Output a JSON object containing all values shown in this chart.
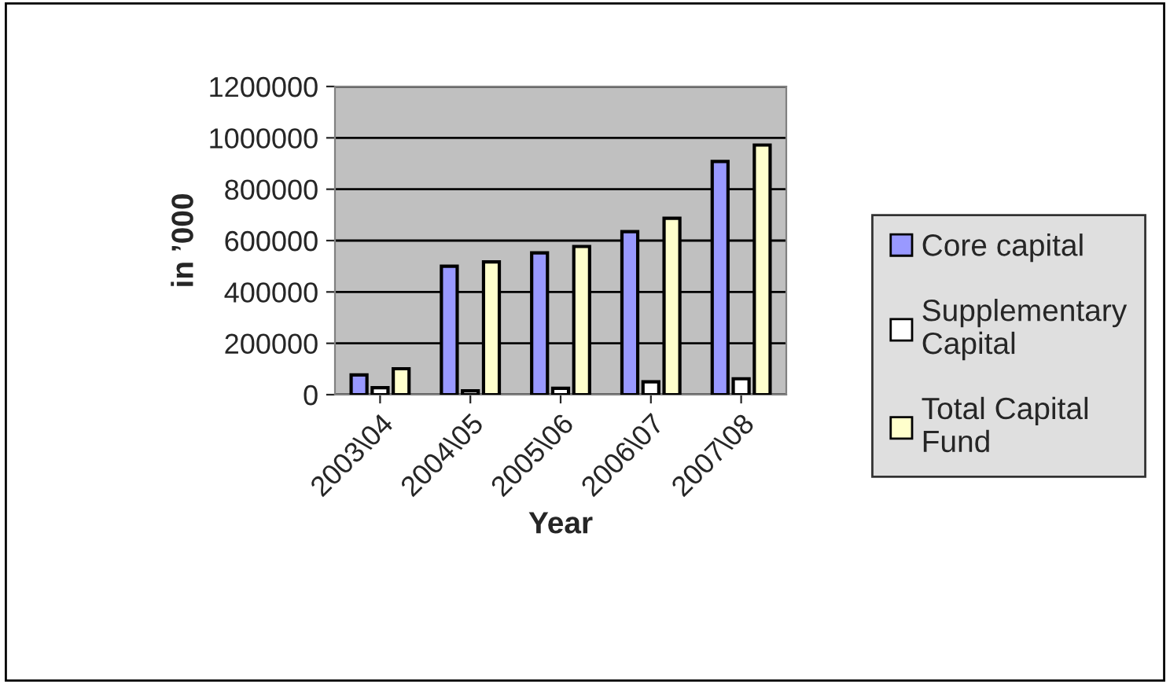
{
  "chart_data": {
    "type": "bar",
    "xlabel": "Year",
    "ylabel": "in ’000",
    "categories": [
      "2003\\04",
      "2004\\05",
      "2005\\06",
      "2006\\07",
      "2007\\08"
    ],
    "series": [
      {
        "name": "Core capital",
        "color": "#9999ff",
        "values": [
          77000,
          500000,
          552000,
          635000,
          908000
        ]
      },
      {
        "name": "Supplementary Capital",
        "color": "#ffffff",
        "values": [
          27000,
          15000,
          25000,
          50000,
          62000
        ]
      },
      {
        "name": "Total Capital Fund",
        "color": "#ffffcc",
        "values": [
          101000,
          517000,
          577000,
          687000,
          972000
        ]
      }
    ],
    "ylim": [
      0,
      1200000
    ],
    "yticks": [
      0,
      200000,
      400000,
      600000,
      800000,
      1000000,
      1200000
    ],
    "grid": "y",
    "legend": "right"
  }
}
